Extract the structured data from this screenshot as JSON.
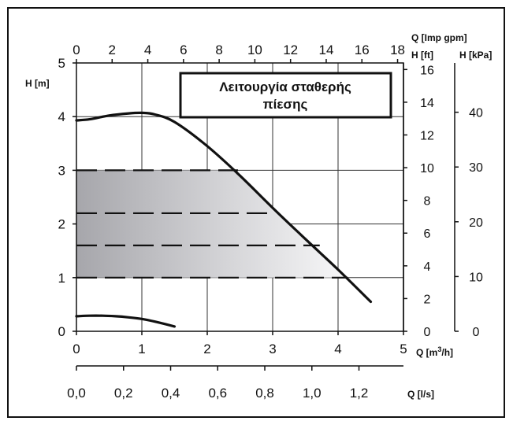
{
  "chart_data": {
    "type": "line",
    "title": "Λειτουργία σταθερής πίεσης",
    "title_lines": [
      "Λειτουργία σταθερής",
      "πίεσης"
    ],
    "grid": true,
    "axes": {
      "x_bottom": {
        "label": "Q [m³/h]",
        "label_parts": {
          "pre": "Q [m",
          "sup": "3",
          "post": "/h]"
        },
        "range": [
          0,
          5
        ],
        "ticks": [
          "0",
          "1",
          "2",
          "3",
          "4",
          "5"
        ]
      },
      "x_bottom2": {
        "label": "Q [l/s]",
        "range": [
          0,
          1.389
        ],
        "ticks": [
          {
            "v": 0.0,
            "label": "0,0"
          },
          {
            "v": 0.2,
            "label": "0,2"
          },
          {
            "v": 0.4,
            "label": "0,4"
          },
          {
            "v": 0.6,
            "label": "0,6"
          },
          {
            "v": 0.8,
            "label": "0,8"
          },
          {
            "v": 1.0,
            "label": "1,0"
          },
          {
            "v": 1.2,
            "label": "1,2"
          }
        ]
      },
      "x_top": {
        "label": "Q [Imp gpm]",
        "range": [
          0,
          18.33
        ],
        "ticks": [
          "0",
          "2",
          "4",
          "6",
          "8",
          "10",
          "12",
          "14",
          "16",
          "18"
        ]
      },
      "y_left": {
        "label": "H [m]",
        "range": [
          0,
          5
        ],
        "ticks": [
          "0",
          "1",
          "2",
          "3",
          "4",
          "5"
        ]
      },
      "y_right_ft": {
        "label": "H [ft]",
        "range": [
          0,
          16.4
        ],
        "ticks": [
          "0",
          "2",
          "4",
          "6",
          "8",
          "10",
          "12",
          "14",
          "16"
        ]
      },
      "y_right_kpa": {
        "label": "H [kPa]",
        "range": [
          0,
          49
        ],
        "ticks": [
          "0",
          "10",
          "20",
          "30",
          "40"
        ]
      }
    },
    "max_curve": {
      "x": [
        0,
        0.2,
        0.5,
        0.8,
        1.0,
        1.2,
        1.5,
        2.0,
        2.5,
        3.0,
        3.5,
        4.0,
        4.5
      ],
      "y": [
        3.93,
        3.95,
        4.02,
        4.06,
        4.07,
        4.04,
        3.9,
        3.45,
        2.9,
        2.3,
        1.72,
        1.15,
        0.55
      ]
    },
    "min_curve": {
      "x": [
        0,
        0.2,
        0.4,
        0.6,
        0.8,
        1.0,
        1.2,
        1.5
      ],
      "y": [
        0.28,
        0.29,
        0.29,
        0.28,
        0.26,
        0.23,
        0.18,
        0.09
      ]
    },
    "constant_pressure_lines": [
      {
        "h": 3.0,
        "x_end": 2.47
      },
      {
        "h": 2.2,
        "x_end": 3.0
      },
      {
        "h": 1.6,
        "x_end": 3.72
      },
      {
        "h": 1.0,
        "x_end": 4.15
      }
    ],
    "region": {
      "h_min": 1.0,
      "h_max": 3.0
    }
  }
}
